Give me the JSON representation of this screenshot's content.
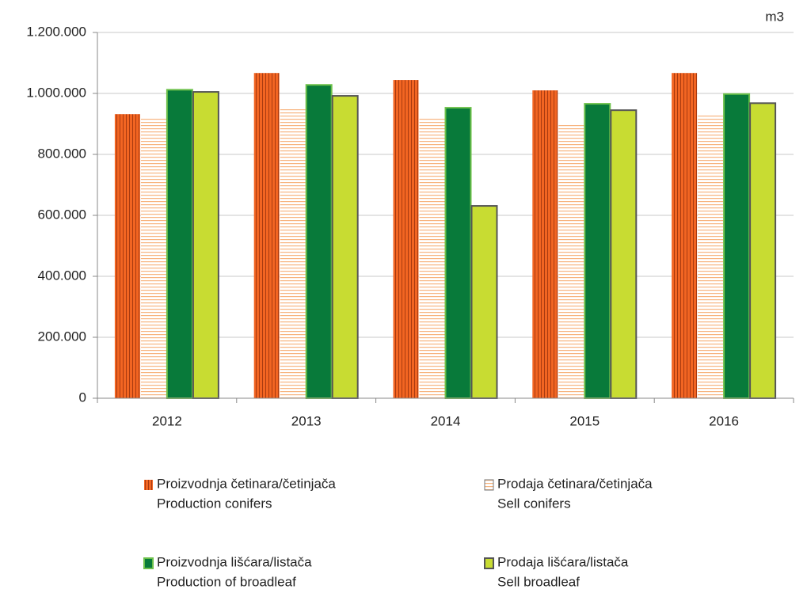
{
  "chart_data": {
    "type": "bar",
    "unit": "m3",
    "categories": [
      "2012",
      "2013",
      "2014",
      "2015",
      "2016"
    ],
    "series": [
      {
        "name": [
          "Proizvodnja četinara/četinjača",
          "Production conifers"
        ],
        "color": "#f26522",
        "pattern": "vertical",
        "values": [
          932000,
          1067000,
          1044000,
          1010000,
          1067000
        ]
      },
      {
        "name": [
          "Prodaja četinara/četinjača",
          "Sell conifers"
        ],
        "color": "#f7b47f",
        "pattern": "horizontal",
        "values": [
          917000,
          948000,
          919000,
          901000,
          928000
        ]
      },
      {
        "name": [
          "Proizvodnja lišćara/listača",
          "Production of  broadleaf"
        ],
        "color": "#087a3a",
        "edgecolor": "#6cc04a",
        "values": [
          1012000,
          1028000,
          953000,
          966000,
          998000
        ]
      },
      {
        "name": [
          "Prodaja lišćara/listača",
          "Sell broadleaf"
        ],
        "color": "#c8dc32",
        "edgecolor": "#555555",
        "values": [
          1005000,
          992000,
          631000,
          945000,
          968000
        ]
      }
    ],
    "ylim": [
      0,
      1200000
    ],
    "yticks": [
      0,
      {
        "value": 200000,
        "label": "200.000"
      },
      {
        "value": 400000,
        "label": "400.000"
      },
      {
        "value": 600000,
        "label": "600.000"
      },
      {
        "value": 800000,
        "label": "800.000"
      },
      {
        "value": 1000000,
        "label": "1.000.000"
      },
      {
        "value": 1200000,
        "label": "1.200.000"
      }
    ],
    "grid": true
  }
}
